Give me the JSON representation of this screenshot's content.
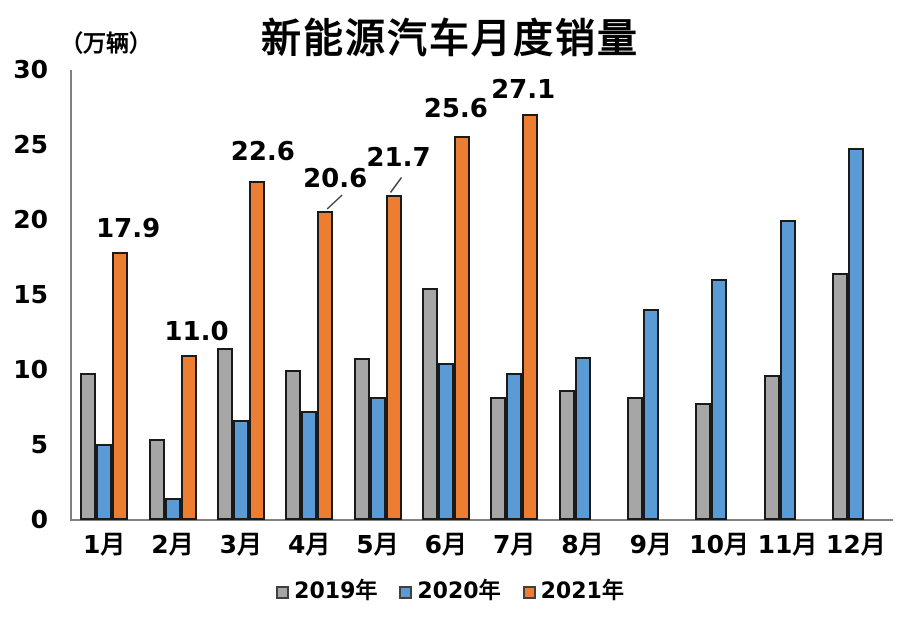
{
  "title": "新能源汽车月度销量",
  "unit_label": "（万辆）",
  "legend": [
    {
      "label": "2019年",
      "color": "#a6a6a6"
    },
    {
      "label": "2020年",
      "color": "#5b9bd5"
    },
    {
      "label": "2021年",
      "color": "#ed7d31"
    }
  ],
  "colors": {
    "series_2019": "#a6a6a6",
    "series_2020": "#5b9bd5",
    "series_2021": "#ed7d31",
    "axis": "#808080",
    "bar_outline": "#1a1a1a",
    "text": "#000000"
  },
  "chart_data": {
    "type": "bar",
    "title": "新能源汽车月度销量",
    "ylabel": "（万辆）",
    "xlabel": "",
    "categories": [
      "1月",
      "2月",
      "3月",
      "4月",
      "5月",
      "6月",
      "7月",
      "8月",
      "9月",
      "10月",
      "11月",
      "12月"
    ],
    "series": [
      {
        "name": "2019年",
        "color": "#a6a6a6",
        "values": [
          9.8,
          5.4,
          11.5,
          10.0,
          10.8,
          15.5,
          8.2,
          8.7,
          8.2,
          7.8,
          9.7,
          16.5
        ]
      },
      {
        "name": "2020年",
        "color": "#5b9bd5",
        "values": [
          5.1,
          1.5,
          6.7,
          7.3,
          8.2,
          10.5,
          9.8,
          10.9,
          14.1,
          16.1,
          20.0,
          24.8
        ]
      },
      {
        "name": "2021年",
        "color": "#ed7d31",
        "values": [
          17.9,
          11.0,
          22.6,
          20.6,
          21.7,
          25.6,
          27.1,
          null,
          null,
          null,
          null,
          null
        ],
        "data_labels": [
          "17.9",
          "11.0",
          "22.6",
          "20.6",
          "21.7",
          "25.6",
          "27.1"
        ]
      }
    ],
    "y_ticks": [
      0,
      5,
      10,
      15,
      20,
      25,
      30
    ],
    "ylim": [
      0,
      30
    ],
    "grid": false,
    "legend_position": "bottom"
  }
}
